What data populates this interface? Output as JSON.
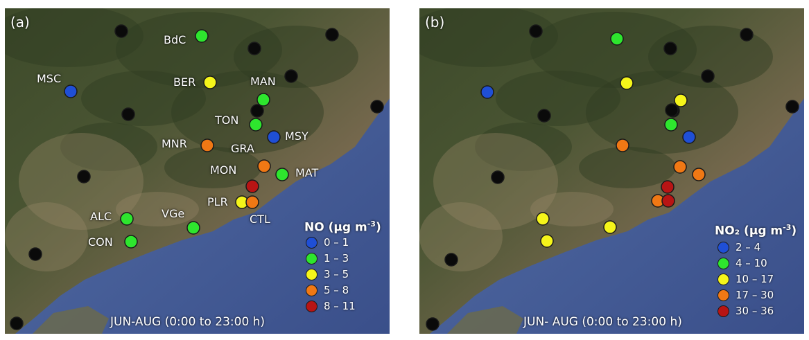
{
  "panels": [
    {
      "letter": "(a)",
      "pollutant": "NO",
      "unit": "(µg m",
      "unit_exp": "-3",
      "unit_close": ")",
      "period": "JUN-AUG (0:00 to 23:00 h)",
      "legend": [
        {
          "range": "0 – 1",
          "color": "#1f4fd6"
        },
        {
          "range": "1 – 3",
          "color": "#2ee62e"
        },
        {
          "range": "3 – 5",
          "color": "#f5f51a"
        },
        {
          "range": "5 – 8",
          "color": "#f07814"
        },
        {
          "range": "8 – 11",
          "color": "#b81414"
        }
      ],
      "stations": [
        {
          "code": "BdC",
          "class": 1
        },
        {
          "code": "MSC",
          "class": 0
        },
        {
          "code": "BER",
          "class": 2
        },
        {
          "code": "MAN",
          "class": 1
        },
        {
          "code": "TON",
          "class": 1
        },
        {
          "code": "MSY",
          "class": 0
        },
        {
          "code": "MNR",
          "class": 3
        },
        {
          "code": "GRA",
          "class": null
        },
        {
          "code": "MON",
          "class": 3
        },
        {
          "code": "MAT",
          "class": 1
        },
        {
          "code": "PLR",
          "class": 2
        },
        {
          "code": "CTL",
          "class": 3
        },
        {
          "code": "VGe",
          "class": 1
        },
        {
          "code": "ALC",
          "class": 1
        },
        {
          "code": "CON",
          "class": 1
        }
      ]
    },
    {
      "letter": "(b)",
      "pollutant": "NO₂",
      "unit": "(µg m",
      "unit_exp": "-3",
      "unit_close": ")",
      "period": "JUN- AUG (0:00 to 23:00 h)",
      "legend": [
        {
          "range": "2 – 4",
          "color": "#1f4fd6"
        },
        {
          "range": "4 – 10",
          "color": "#2ee62e"
        },
        {
          "range": "10 – 17",
          "color": "#f5f51a"
        },
        {
          "range": "17 – 30",
          "color": "#f07814"
        },
        {
          "range": "30 – 36",
          "color": "#b81414"
        }
      ]
    }
  ]
}
